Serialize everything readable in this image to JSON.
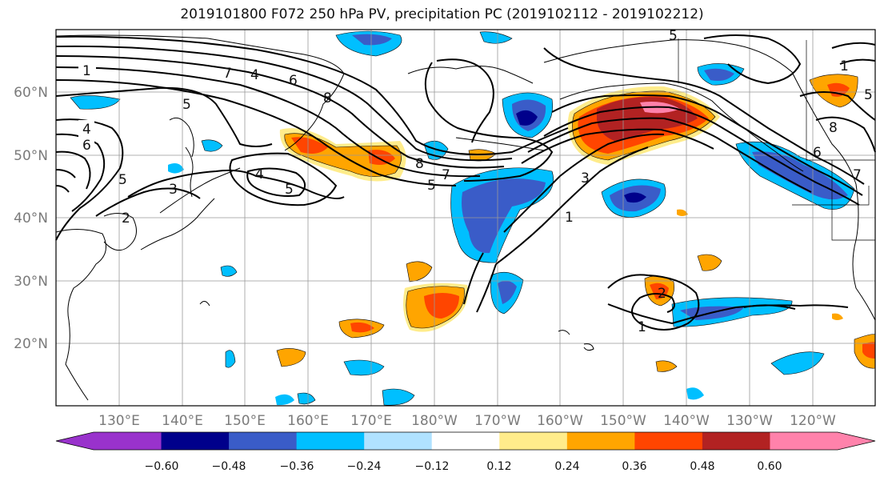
{
  "title": "2019101800 F072 250 hPa PV, precipitation PC (2019102112 - 2019102212)",
  "lat_labels": [
    "60°N",
    "50°N",
    "40°N",
    "30°N",
    "20°N"
  ],
  "lon_labels": [
    "130°E",
    "140°E",
    "150°E",
    "160°E",
    "170°E",
    "180°W",
    "170°W",
    "160°W",
    "150°W",
    "140°W",
    "130°W",
    "120°W"
  ],
  "colorbar": {
    "ticks": [
      "−0.60",
      "−0.48",
      "−0.36",
      "−0.24",
      "−0.12",
      "0.12",
      "0.24",
      "0.36",
      "0.48",
      "0.60"
    ],
    "colors": [
      "#9932cc",
      "#00008b",
      "#3a5cc8",
      "#00bfff",
      "#b0e2ff",
      "#ffffff",
      "#ffec8b",
      "#ffa500",
      "#ff4500",
      "#b22222",
      "#ff82ab"
    ]
  },
  "contour_labels": [
    "1",
    "7",
    "4",
    "6",
    "8",
    "5",
    "4",
    "6",
    "5",
    "3",
    "2",
    "4",
    "5",
    "8",
    "7",
    "5",
    "3",
    "1",
    "5",
    "1",
    "8",
    "6",
    "7",
    "2",
    "1",
    "5"
  ]
}
